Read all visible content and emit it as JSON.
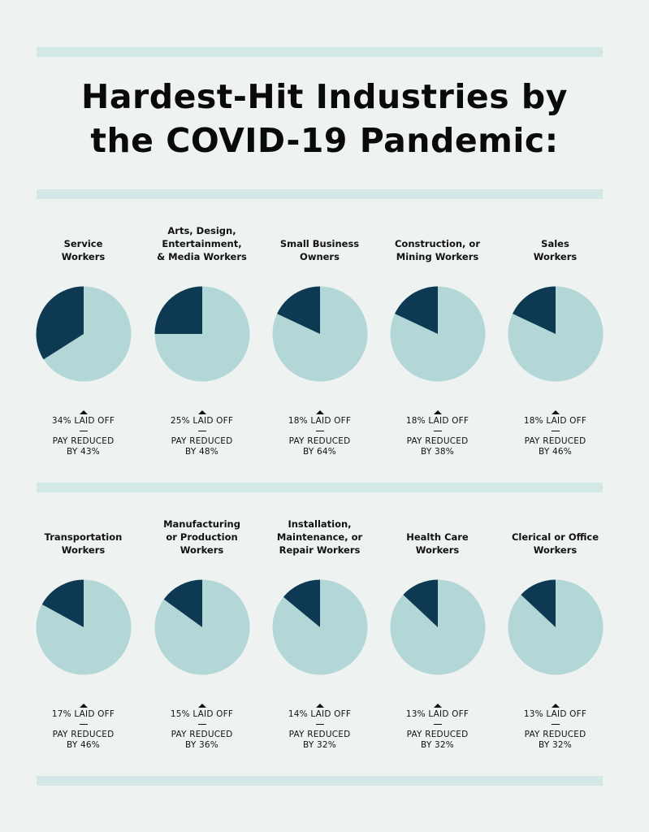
{
  "title_lines": [
    "Hardest-Hit Industries by",
    "the COVID-19 Pandemic:"
  ],
  "colors": {
    "background": "#eef3f2",
    "rule": "#d3e7e6",
    "pie_light": "#b3d6d7",
    "pie_dark": "#0d3a52"
  },
  "chart_data": {
    "type": "pie",
    "title": "Hardest-Hit Industries by the COVID-19 Pandemic:",
    "items": [
      {
        "label_lines": [
          "Service",
          "Workers"
        ],
        "laid_off_pct": 34,
        "laid_off_text": "34% LAID OFF",
        "pay_text_1": "PAY REDUCED",
        "pay_text_2": "BY 43%",
        "pay_reduced_pct": 43
      },
      {
        "label_lines": [
          "Arts, Design,",
          "Entertainment,",
          "& Media Workers"
        ],
        "laid_off_pct": 25,
        "laid_off_text": "25% LAID OFF",
        "pay_text_1": "PAY REDUCED",
        "pay_text_2": "BY 48%",
        "pay_reduced_pct": 48
      },
      {
        "label_lines": [
          "Small Business",
          "Owners"
        ],
        "laid_off_pct": 18,
        "laid_off_text": "18% LAID OFF",
        "pay_text_1": "PAY REDUCED",
        "pay_text_2": "BY 64%",
        "pay_reduced_pct": 64
      },
      {
        "label_lines": [
          "Construction, or",
          "Mining Workers"
        ],
        "laid_off_pct": 18,
        "laid_off_text": "18% LAID OFF",
        "pay_text_1": "PAY REDUCED",
        "pay_text_2": "BY 38%",
        "pay_reduced_pct": 38
      },
      {
        "label_lines": [
          "Sales",
          "Workers"
        ],
        "laid_off_pct": 18,
        "laid_off_text": "18% LAID OFF",
        "pay_text_1": "PAY REDUCED",
        "pay_text_2": "BY 46%",
        "pay_reduced_pct": 46
      },
      {
        "label_lines": [
          "Transportation",
          "Workers"
        ],
        "laid_off_pct": 17,
        "laid_off_text": "17% LAID OFF",
        "pay_text_1": "PAY REDUCED",
        "pay_text_2": "BY 46%",
        "pay_reduced_pct": 46
      },
      {
        "label_lines": [
          "Manufacturing",
          "or Production",
          "Workers"
        ],
        "laid_off_pct": 15,
        "laid_off_text": "15% LAID OFF",
        "pay_text_1": "PAY REDUCED",
        "pay_text_2": "BY 36%",
        "pay_reduced_pct": 36
      },
      {
        "label_lines": [
          "Installation,",
          "Maintenance, or",
          "Repair Workers"
        ],
        "laid_off_pct": 14,
        "laid_off_text": "14% LAID OFF",
        "pay_text_1": "PAY REDUCED",
        "pay_text_2": "BY 32%",
        "pay_reduced_pct": 32
      },
      {
        "label_lines": [
          "Health Care",
          "Workers"
        ],
        "laid_off_pct": 13,
        "laid_off_text": "13% LAID OFF",
        "pay_text_1": "PAY REDUCED",
        "pay_text_2": "BY 32%",
        "pay_reduced_pct": 32
      },
      {
        "label_lines": [
          "Clerical or Office",
          "Workers"
        ],
        "laid_off_pct": 13,
        "laid_off_text": "13% LAID OFF",
        "pay_text_1": "PAY REDUCED",
        "pay_text_2": "BY 32%",
        "pay_reduced_pct": 32
      }
    ]
  }
}
